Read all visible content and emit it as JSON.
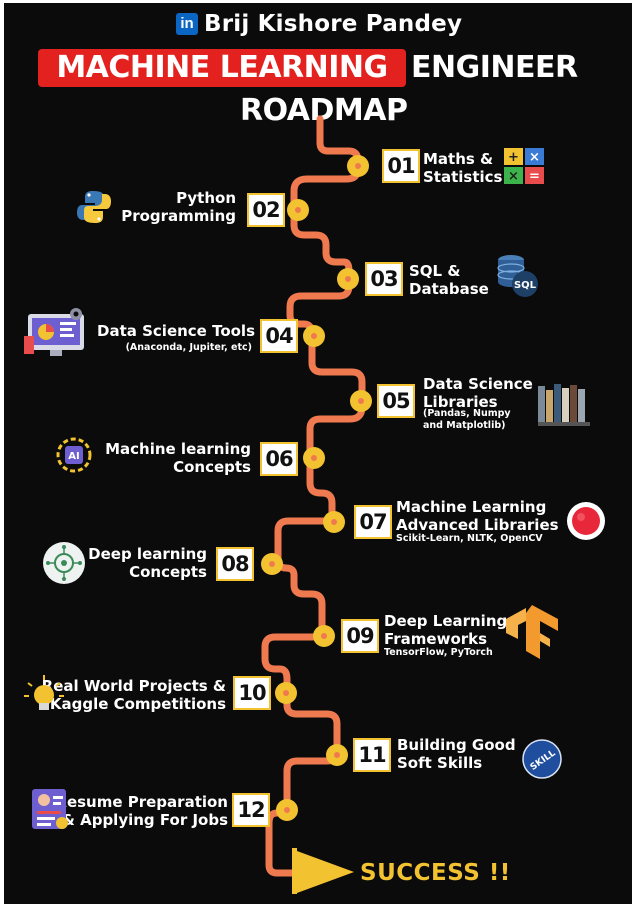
{
  "header": {
    "brand_logo": "in",
    "brand_name": "Brij Kishore Pandey",
    "title_highlight": "MACHINE LEARNING",
    "title_rest": "ENGINEER",
    "title_line2": "ROADMAP"
  },
  "colors": {
    "background": "#0b0b0b",
    "path": "#f07a4f",
    "node": "#f2c230",
    "highlight": "#e3211e"
  },
  "steps": [
    {
      "num": "01",
      "label_lines": [
        "Maths &",
        "Statistics"
      ],
      "sub": "",
      "icon": "calculator-icon"
    },
    {
      "num": "02",
      "label_lines": [
        "Python",
        "Programming"
      ],
      "sub": "",
      "icon": "python-icon"
    },
    {
      "num": "03",
      "label_lines": [
        "SQL &",
        "Database"
      ],
      "sub": "",
      "icon": "sql-database-icon"
    },
    {
      "num": "04",
      "label_lines": [
        "Data Science Tools"
      ],
      "sub": "(Anaconda, Jupiter, etc)",
      "icon": "data-tools-icon"
    },
    {
      "num": "05",
      "label_lines": [
        "Data Science",
        "Libraries"
      ],
      "sub_lines": [
        "(Pandas, Numpy",
        "and Matplotlib)"
      ],
      "icon": "books-icon"
    },
    {
      "num": "06",
      "label_lines": [
        "Machine learning",
        "Concepts"
      ],
      "sub": "",
      "icon": "ai-chip-icon"
    },
    {
      "num": "07",
      "label_lines": [
        "Machine Learning",
        "Advanced Libraries"
      ],
      "sub": "Scikit-Learn, NLTK, OpenCV",
      "icon": "library-logo-icon"
    },
    {
      "num": "08",
      "label_lines": [
        "Deep learning",
        "Concepts"
      ],
      "sub": "",
      "icon": "neural-brain-icon"
    },
    {
      "num": "09",
      "label_lines": [
        "Deep Learning",
        "Frameworks"
      ],
      "sub": "TensorFlow, PyTorch",
      "icon": "tensorflow-icon"
    },
    {
      "num": "10",
      "label_lines": [
        "Real World Projects &",
        "Kaggle Competitions"
      ],
      "sub": "",
      "icon": "lightbulb-icon"
    },
    {
      "num": "11",
      "label_lines": [
        "Building Good",
        "Soft Skills"
      ],
      "sub": "",
      "icon": "skill-badge-icon"
    },
    {
      "num": "12",
      "label_lines": [
        "Resume Preparation",
        "& Applying For Jobs"
      ],
      "sub": "",
      "icon": "resume-icon"
    }
  ],
  "footer": {
    "success_text": "SUCCESS !!"
  },
  "icon_text": {
    "sql": "SQL",
    "ai": "AI",
    "skill": "SKILL"
  }
}
